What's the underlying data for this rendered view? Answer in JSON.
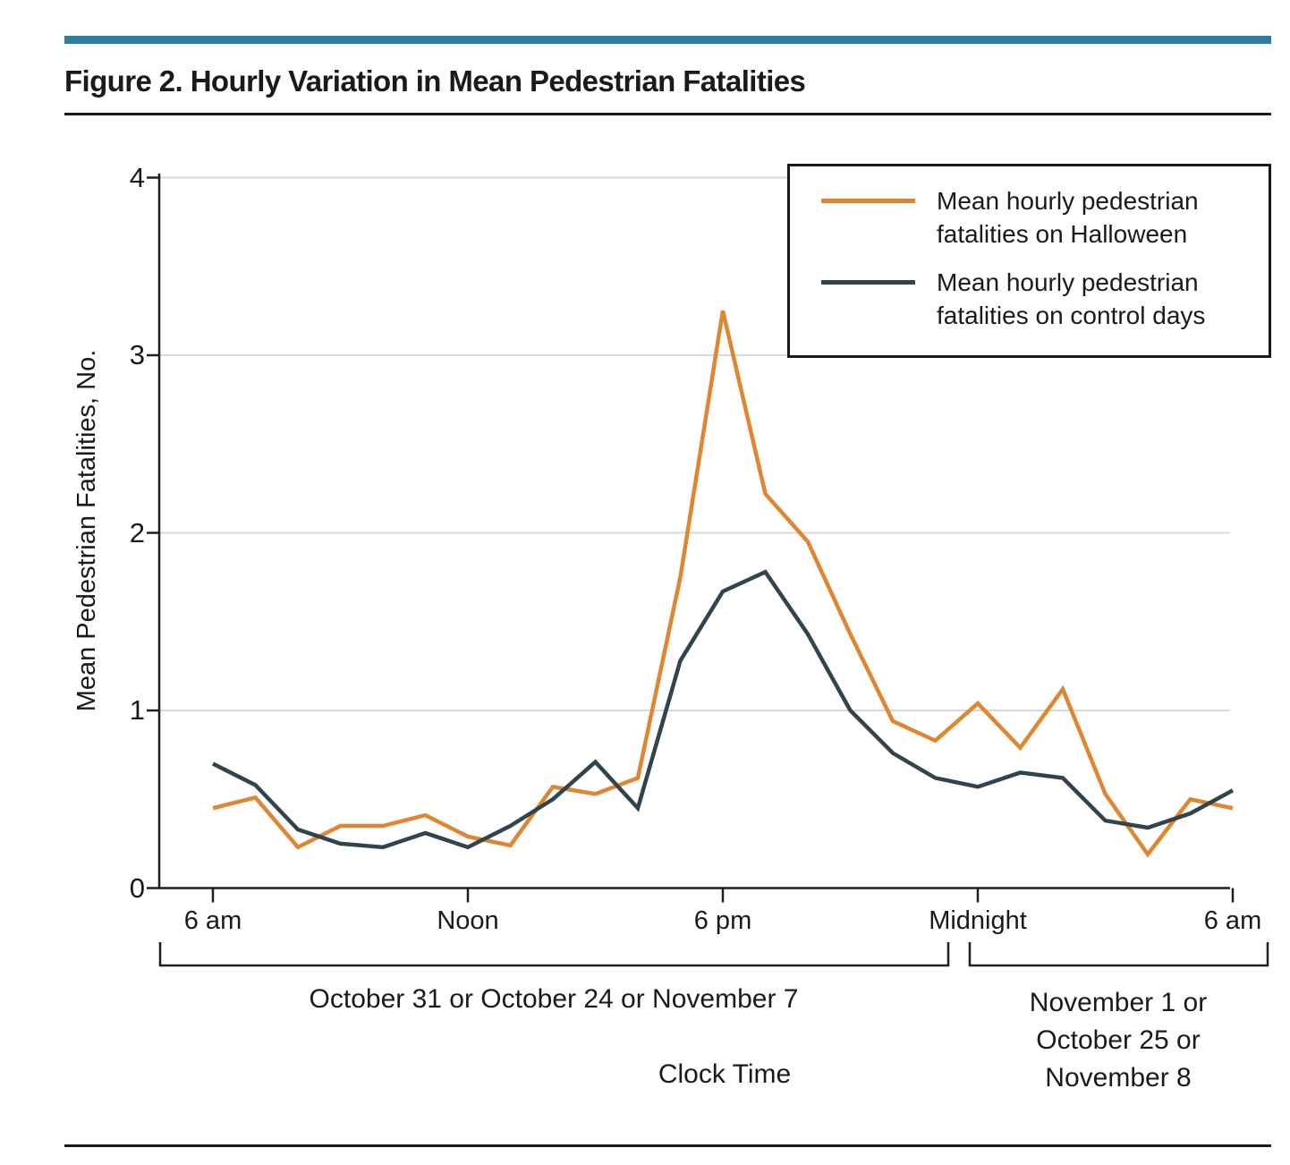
{
  "figure": {
    "title": "Figure 2. Hourly Variation in Mean Pedestrian Fatalities"
  },
  "colors": {
    "accent_bar": "#2E7DA1",
    "halloween_line": "#DF8630",
    "control_line": "#2F444C",
    "gridline": "#D9D9D9",
    "axis": "#1F1F1F",
    "text": "#1A1A1A",
    "background": "#FFFFFF"
  },
  "chart_data": {
    "type": "line",
    "title": "",
    "ylabel": "Mean Pedestrian Fatalities, No.",
    "xlabel": "Clock Time",
    "ylim": [
      0,
      4
    ],
    "y_ticks": [
      0,
      1,
      2,
      3,
      4
    ],
    "x_points": "25 hourly values from 6 am through 6 am the next day",
    "x_tick_labels": [
      {
        "label": "6 am",
        "hour": 0
      },
      {
        "label": "Noon",
        "hour": 6
      },
      {
        "label": "6 pm",
        "hour": 12
      },
      {
        "label": "Midnight",
        "hour": 18
      },
      {
        "label": "6 am",
        "hour": 24
      }
    ],
    "grid": "horizontal gridlines at y = 1, 2, 3, 4",
    "legend_position": "top-right inset box",
    "series": [
      {
        "name": "Mean hourly pedestrian\nfatalities on Halloween",
        "color": "#DF8630",
        "values": [
          0.45,
          0.51,
          0.23,
          0.35,
          0.35,
          0.41,
          0.29,
          0.24,
          0.57,
          0.53,
          0.62,
          1.75,
          3.25,
          2.22,
          1.95,
          1.43,
          0.94,
          0.83,
          1.04,
          0.79,
          1.12,
          0.53,
          0.19,
          0.5,
          0.45
        ]
      },
      {
        "name": "Mean hourly pedestrian\nfatalities on control days",
        "color": "#2F444C",
        "values": [
          0.7,
          0.58,
          0.33,
          0.25,
          0.23,
          0.31,
          0.23,
          0.35,
          0.5,
          0.71,
          0.45,
          1.28,
          1.67,
          1.78,
          1.43,
          1.0,
          0.76,
          0.62,
          0.57,
          0.65,
          0.62,
          0.38,
          0.34,
          0.42,
          0.55
        ]
      }
    ]
  },
  "footer": {
    "bracket_left_label": "October 31 or October 24 or November 7",
    "bracket_right_label": "November 1 or\nOctober 25 or\nNovember 8"
  }
}
